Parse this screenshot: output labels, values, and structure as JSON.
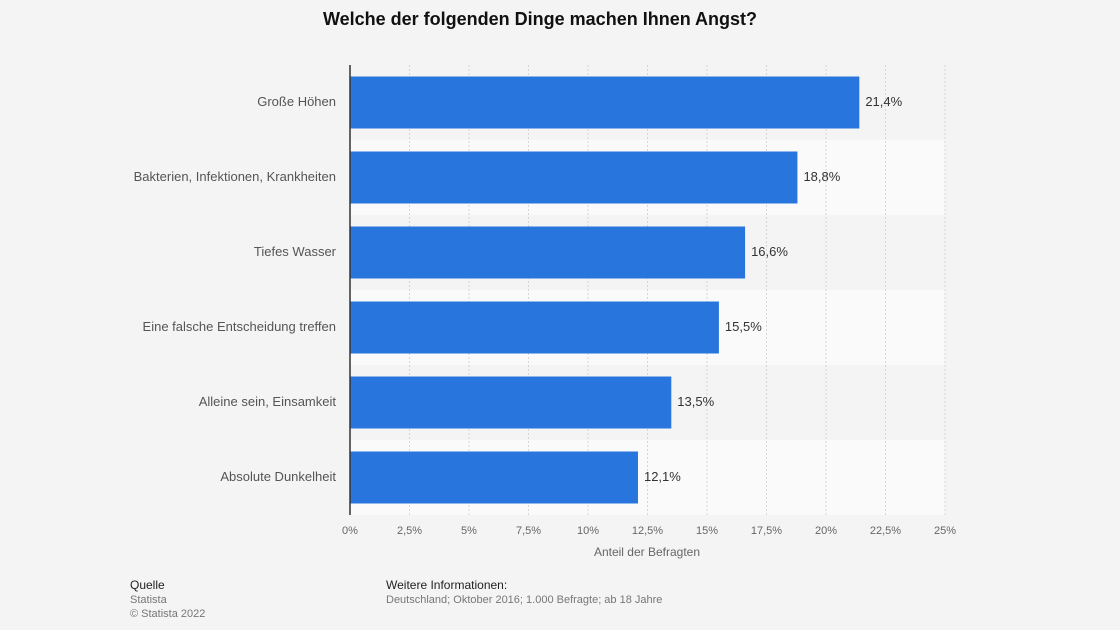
{
  "chart_data": {
    "type": "hbar",
    "title": "Welche der folgenden Dinge machen Ihnen Angst?",
    "categories": [
      "Große Höhen",
      "Bakterien, Infektionen, Krankheiten",
      "Tiefes Wasser",
      "Eine falsche Entscheidung treffen",
      "Alleine sein, Einsamkeit",
      "Absolute Dunkelheit"
    ],
    "values": [
      21.4,
      18.8,
      16.6,
      15.5,
      13.5,
      12.1
    ],
    "value_labels": [
      "21,4%",
      "18,8%",
      "16,6%",
      "15,5%",
      "13,5%",
      "12,1%"
    ],
    "color": "#2876dd",
    "xlabel": "Anteil der Befragten",
    "xlim": [
      0,
      25
    ],
    "xticks": [
      {
        "value": 0,
        "label": "0%"
      },
      {
        "value": 2.5,
        "label": "2,5%"
      },
      {
        "value": 5,
        "label": "5%"
      },
      {
        "value": 7.5,
        "label": "7,5%"
      },
      {
        "value": 10,
        "label": "10%"
      },
      {
        "value": 12.5,
        "label": "12,5%"
      },
      {
        "value": 15,
        "label": "15%"
      },
      {
        "value": 17.5,
        "label": "17,5%"
      },
      {
        "value": 20,
        "label": "20%"
      },
      {
        "value": 22.5,
        "label": "22,5%"
      },
      {
        "value": 25,
        "label": "25%"
      }
    ],
    "grid": true
  },
  "footer": {
    "source_title": "Quelle",
    "source": "Statista",
    "copyright": "© Statista 2022",
    "info_title": "Weitere Informationen:",
    "info": "Deutschland; Oktober 2016; 1.000 Befragte; ab 18 Jahre"
  }
}
